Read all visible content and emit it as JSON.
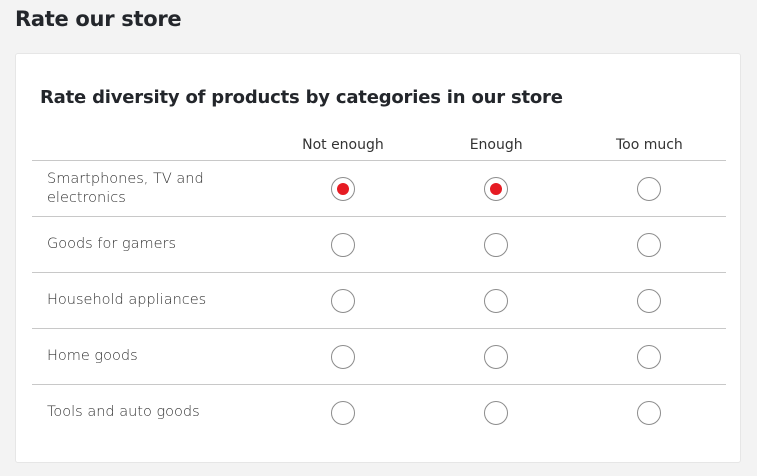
{
  "page": {
    "title": "Rate our store"
  },
  "question": {
    "title": "Rate diversity of products by categories in our store",
    "columns": [
      "Not enough",
      "Enough",
      "Too much"
    ],
    "rows": [
      {
        "label": "Smartphones, TV and electronics",
        "selected": [
          "Not enough",
          "Enough"
        ]
      },
      {
        "label": "Goods for gamers",
        "selected": []
      },
      {
        "label": "Household appliances",
        "selected": []
      },
      {
        "label": "Home goods",
        "selected": []
      },
      {
        "label": "Tools and auto goods",
        "selected": []
      }
    ]
  },
  "colors": {
    "accent": "#e61b23",
    "background": "#f3f3f3"
  }
}
